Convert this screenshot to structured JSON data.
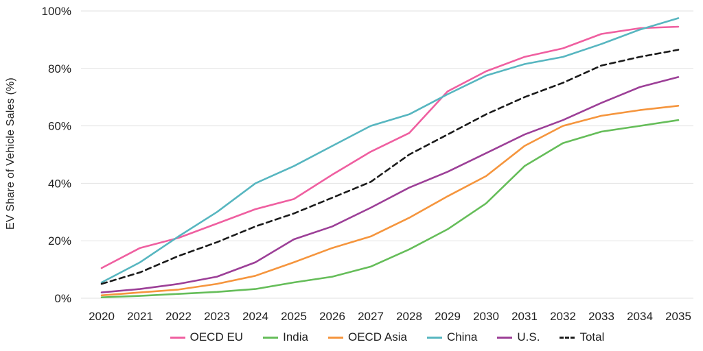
{
  "colors": {
    "grid": "#E2E2E2",
    "text": "#212121",
    "background": "#FFFFFF"
  },
  "chart_data": {
    "type": "line",
    "title": "",
    "xlabel": "",
    "ylabel": "EV Share of Vehicle Sales (%)",
    "ylim": [
      0,
      100
    ],
    "grid": true,
    "legend_position": "bottom",
    "x": [
      2020,
      2021,
      2022,
      2023,
      2024,
      2025,
      2026,
      2027,
      2028,
      2029,
      2030,
      2031,
      2032,
      2033,
      2034,
      2035
    ],
    "yticks": [
      "0%",
      "20%",
      "40%",
      "60%",
      "80%",
      "100%"
    ],
    "series": [
      {
        "name": "OECD EU",
        "color": "#EF5FA0",
        "dash": false,
        "values": [
          10.5,
          17.5,
          21,
          26,
          31,
          34.5,
          43,
          51,
          57.5,
          72,
          79,
          84,
          87,
          92,
          94,
          94.5
        ]
      },
      {
        "name": "India",
        "color": "#65BD59",
        "dash": false,
        "values": [
          0.3,
          0.8,
          1.5,
          2.2,
          3.2,
          5.5,
          7.5,
          11,
          17,
          24,
          33,
          46,
          54,
          58,
          60,
          62
        ]
      },
      {
        "name": "OECD Asia",
        "color": "#F5953D",
        "dash": false,
        "values": [
          1,
          2,
          3,
          5,
          7.8,
          12.5,
          17.5,
          21.5,
          28,
          35.5,
          42.5,
          53,
          60,
          63.5,
          65.5,
          67
        ]
      },
      {
        "name": "China",
        "color": "#57B6C0",
        "dash": false,
        "values": [
          5.5,
          12.5,
          21.5,
          30,
          40,
          46,
          53,
          60,
          64,
          71,
          77.5,
          81.5,
          84,
          88.5,
          93.5,
          97.5
        ]
      },
      {
        "name": "U.S.",
        "color": "#9C3F97",
        "dash": false,
        "values": [
          2,
          3.2,
          5,
          7.5,
          12.5,
          20.5,
          25,
          31.5,
          38.5,
          44,
          50.5,
          57,
          62,
          68,
          73.5,
          77
        ]
      },
      {
        "name": "Total",
        "color": "#1A1A1A",
        "dash": true,
        "values": [
          5,
          9,
          14.7,
          19.5,
          25,
          29.5,
          35,
          40.5,
          50,
          57,
          64,
          70,
          75,
          81,
          84,
          86.5
        ]
      }
    ]
  }
}
